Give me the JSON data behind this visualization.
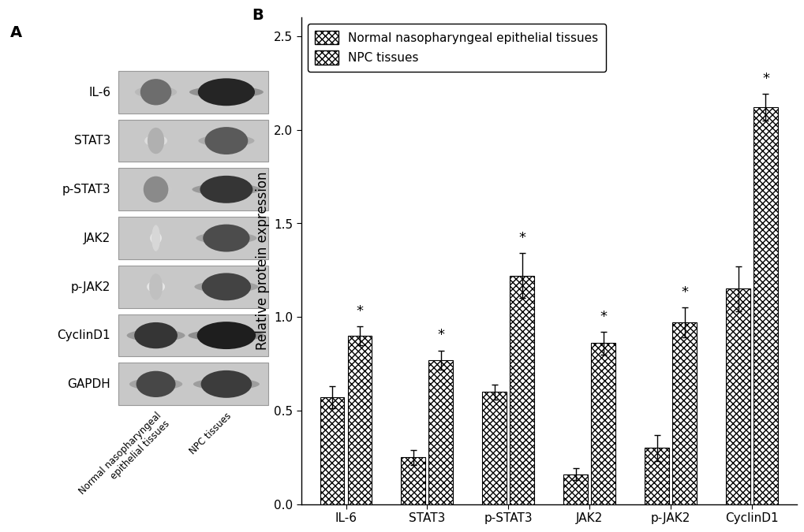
{
  "panel_A_label": "A",
  "panel_B_label": "B",
  "proteins": [
    "IL-6",
    "STAT3",
    "p-STAT3",
    "JAK2",
    "p-JAK2",
    "CyclinD1",
    "GAPDH"
  ],
  "categories": [
    "IL-6",
    "STAT3",
    "p-STAT3",
    "JAK2",
    "p-JAK2",
    "CyclinD1"
  ],
  "normal_values": [
    0.57,
    0.25,
    0.6,
    0.16,
    0.3,
    1.15
  ],
  "npc_values": [
    0.9,
    0.77,
    1.22,
    0.86,
    0.97,
    2.12
  ],
  "normal_errors": [
    0.06,
    0.04,
    0.04,
    0.03,
    0.07,
    0.12
  ],
  "npc_errors": [
    0.05,
    0.05,
    0.12,
    0.06,
    0.08,
    0.07
  ],
  "ylabel": "Relative protein expression",
  "ylim": [
    0,
    2.6
  ],
  "yticks": [
    0.0,
    0.5,
    1.0,
    1.5,
    2.0,
    2.5
  ],
  "legend_normal": "Normal nasopharyngeal epithelial tissues",
  "legend_npc": "NPC tissues",
  "significance": [
    true,
    true,
    true,
    true,
    true,
    true
  ],
  "bg_color": "#ffffff",
  "font_size": 11,
  "label_fontsize": 12,
  "tick_fontsize": 11,
  "legend_fontsize": 11,
  "band_intensities_normal": [
    0.65,
    0.35,
    0.52,
    0.18,
    0.28,
    0.9,
    0.82
  ],
  "band_intensities_npc": [
    0.95,
    0.72,
    0.88,
    0.78,
    0.82,
    0.98,
    0.85
  ]
}
